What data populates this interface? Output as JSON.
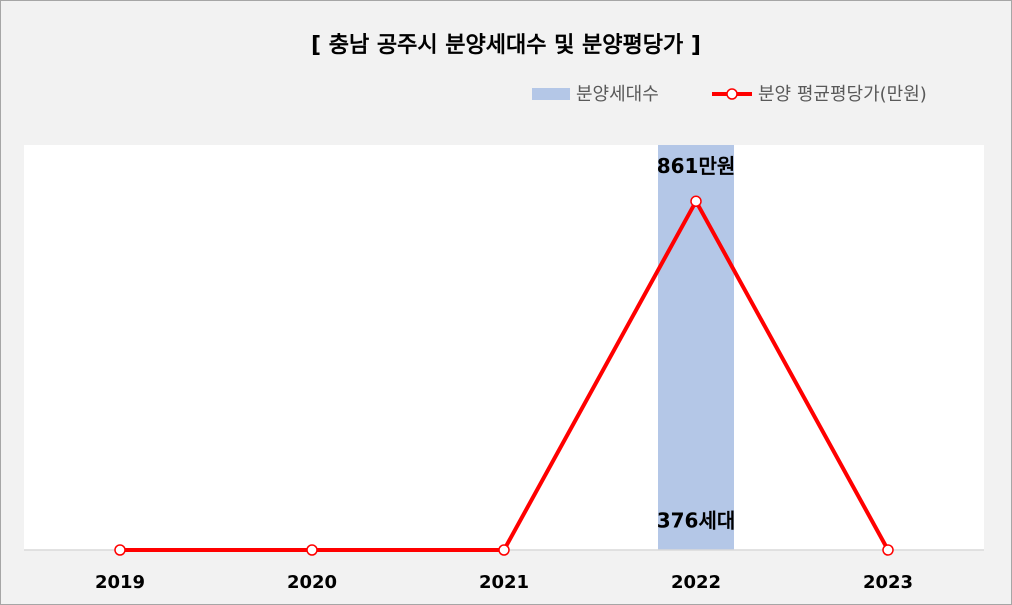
{
  "chart_data": {
    "type": "bar_line",
    "title": "[ 충남 공주시 분양세대수 및 분양평당가 ]",
    "categories": [
      "2019",
      "2020",
      "2021",
      "2022",
      "2023"
    ],
    "series": [
      {
        "name": "분양세대수",
        "type": "bar",
        "color": "#b4c7e7",
        "values": [
          0,
          0,
          0,
          376,
          0
        ],
        "value_labels": [
          null,
          null,
          null,
          "376세대",
          null
        ]
      },
      {
        "name": "분양 평균평당가(만원)",
        "type": "line",
        "axis": "y2",
        "color": "#ff0000",
        "values": [
          0,
          0,
          0,
          861,
          0
        ],
        "value_labels": [
          null,
          null,
          null,
          "861만원",
          null
        ]
      }
    ],
    "ylim": [
      0,
      376
    ],
    "y2lim": [
      0,
      1000
    ],
    "legend": "top-right",
    "grid": false
  }
}
